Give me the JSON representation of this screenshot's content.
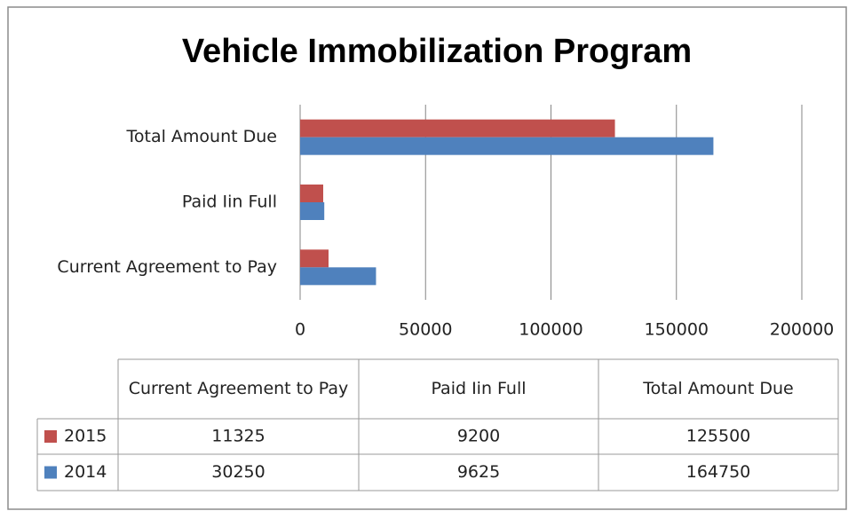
{
  "chart_data": {
    "type": "bar",
    "orientation": "horizontal",
    "title": "Vehicle Immobilization Program",
    "categories": [
      "Current Agreement to Pay",
      "Paid Iin Full",
      "Total Amount Due"
    ],
    "series": [
      {
        "name": "2015",
        "color": "#c0504d",
        "values": [
          11325,
          9200,
          125500
        ]
      },
      {
        "name": "2014",
        "color": "#4f81bd",
        "values": [
          30250,
          9625,
          164750
        ]
      }
    ],
    "xlim": [
      0,
      200000
    ],
    "xticks": [
      0,
      50000,
      100000,
      150000,
      200000
    ],
    "grid": true,
    "data_table": true
  }
}
